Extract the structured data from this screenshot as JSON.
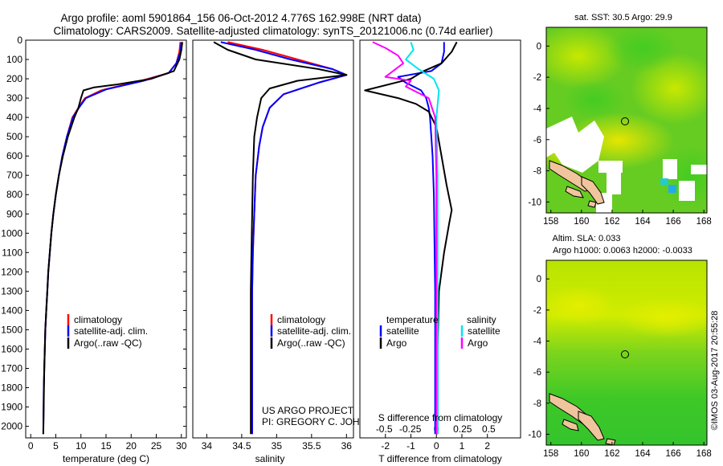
{
  "header": {
    "title_line1": "Argo profile: aoml 5901864_156 06-Oct-2012 4.776S 162.998E (NRT data)",
    "title_line2": "Climatology: CARS2009. Satellite-adjusted climatology: synTS_20121006.nc (0.74d earlier)"
  },
  "colors": {
    "climatology": "#ff0000",
    "satellite": "#0000ff",
    "argo": "#000000",
    "salinity_satellite": "#00e5ee",
    "salinity_argo": "#ff00ff"
  },
  "chart_data": [
    {
      "type": "line",
      "name": "temperature-profile",
      "xlabel": "temperature (deg C)",
      "ylabel": "",
      "xlim": [
        -1,
        31
      ],
      "ylim": [
        2060,
        0
      ],
      "xticks": [
        0,
        5,
        10,
        15,
        20,
        25,
        30
      ],
      "yticks": [
        0,
        100,
        200,
        300,
        400,
        500,
        600,
        700,
        800,
        900,
        1000,
        1100,
        1200,
        1300,
        1400,
        1500,
        1600,
        1700,
        1800,
        1900,
        2000
      ],
      "legend": [
        "climatology",
        "satellite-adj. clim.",
        "Argo(..raw -QC)"
      ],
      "series": [
        {
          "name": "climatology",
          "x": [
            29.8,
            29.6,
            29.0,
            27.5,
            22.0,
            14.0,
            10.8,
            9.5,
            8.3,
            7.2,
            6.3,
            5.6,
            5.0,
            4.5,
            4.1,
            3.8,
            3.5,
            3.3,
            3.1,
            2.9,
            2.8,
            2.6,
            2.5
          ],
          "y": [
            10,
            60,
            120,
            170,
            210,
            260,
            300,
            350,
            400,
            500,
            600,
            700,
            800,
            900,
            1000,
            1100,
            1200,
            1300,
            1400,
            1500,
            1600,
            1800,
            2040
          ]
        },
        {
          "name": "satellite",
          "x": [
            30.0,
            29.8,
            29.0,
            27.5,
            22.5,
            15.0,
            11.0,
            9.6,
            8.4,
            7.2,
            6.3,
            5.6,
            5.0,
            4.5,
            4.1,
            3.8,
            3.5,
            3.3,
            3.1,
            2.9,
            2.8,
            2.6,
            2.5
          ],
          "y": [
            10,
            60,
            120,
            170,
            210,
            255,
            300,
            350,
            400,
            500,
            600,
            700,
            800,
            900,
            1000,
            1100,
            1200,
            1300,
            1400,
            1500,
            1600,
            1800,
            2040
          ]
        },
        {
          "name": "argo",
          "x": [
            30.2,
            30.0,
            29.6,
            28.5,
            24.0,
            17.0,
            12.5,
            10.5,
            10.0,
            9.5,
            8.7,
            7.4,
            6.4,
            5.6,
            5.0,
            4.5,
            4.1,
            3.8,
            3.5,
            3.3,
            3.1,
            2.9,
            2.7,
            2.5
          ],
          "y": [
            10,
            50,
            100,
            160,
            200,
            230,
            245,
            260,
            300,
            350,
            400,
            500,
            600,
            700,
            800,
            900,
            1000,
            1100,
            1200,
            1300,
            1400,
            1500,
            1700,
            2040
          ]
        }
      ]
    },
    {
      "type": "line",
      "name": "salinity-profile",
      "xlabel": "salinity",
      "ylabel": "",
      "xlim": [
        33.8,
        36.1
      ],
      "ylim": [
        2060,
        0
      ],
      "xticks": [
        34,
        34.5,
        35,
        35.5,
        36
      ],
      "legend": [
        "climatology",
        "satellite-adj. clim.",
        "Argo(..raw -QC)"
      ],
      "series": [
        {
          "name": "climatology",
          "x": [
            34.3,
            34.8,
            35.3,
            35.8,
            36.0,
            35.6,
            35.1,
            34.9,
            34.8,
            34.75,
            34.7,
            34.68,
            34.66,
            34.65,
            34.65,
            34.65,
            34.65
          ],
          "y": [
            10,
            50,
            100,
            150,
            180,
            220,
            280,
            350,
            450,
            550,
            700,
            900,
            1100,
            1300,
            1500,
            1800,
            2040
          ]
        },
        {
          "name": "satellite",
          "x": [
            34.2,
            34.7,
            35.2,
            35.8,
            36.0,
            35.6,
            35.1,
            34.9,
            34.8,
            34.75,
            34.7,
            34.68,
            34.66,
            34.65,
            34.65,
            34.65,
            34.65
          ],
          "y": [
            10,
            50,
            100,
            150,
            180,
            220,
            280,
            350,
            450,
            550,
            700,
            900,
            1100,
            1300,
            1500,
            1800,
            2040
          ]
        },
        {
          "name": "argo",
          "x": [
            34.1,
            34.3,
            34.7,
            35.6,
            36.0,
            35.3,
            34.9,
            34.78,
            34.72,
            34.68,
            34.66,
            34.65,
            34.64,
            34.63,
            34.63,
            34.63,
            34.63
          ],
          "y": [
            10,
            50,
            100,
            150,
            180,
            210,
            250,
            300,
            400,
            500,
            700,
            900,
            1100,
            1300,
            1500,
            1800,
            2040
          ]
        }
      ]
    },
    {
      "type": "line",
      "name": "difference-profile",
      "xlabel": "T difference from climatology",
      "xlabel_top": "S difference from climatology",
      "xlim": [
        -3,
        3.3
      ],
      "ylim": [
        2060,
        0
      ],
      "xticks_T": [
        -2,
        -1,
        0,
        1,
        2
      ],
      "xticks_S": [
        "-0.5",
        "-0.25",
        "0",
        "0.25",
        "0.5"
      ],
      "legend_titles": [
        "temperature",
        "salinity"
      ],
      "legend": [
        "satellite",
        "Argo",
        "satellite",
        "Argo"
      ],
      "series": [
        {
          "name": "temperature-satellite",
          "x": [
            0.3,
            0.3,
            0.2,
            -0.2,
            -1.5,
            -1.2,
            -0.6,
            -0.4,
            -0.3,
            -0.25,
            -0.2,
            -0.15,
            -0.1,
            -0.08,
            -0.05,
            -0.05,
            -0.05
          ],
          "y": [
            10,
            60,
            120,
            160,
            190,
            220,
            260,
            300,
            350,
            400,
            500,
            600,
            800,
            1000,
            1300,
            1600,
            2040
          ]
        },
        {
          "name": "temperature-argo",
          "x": [
            0.8,
            0.6,
            0.2,
            -0.5,
            -1.0,
            -2.8,
            -1.5,
            -0.8,
            -0.3,
            0.0,
            0.2,
            0.4,
            0.6,
            0.5,
            0.3,
            0.1,
            0.05,
            0.05
          ],
          "y": [
            10,
            60,
            120,
            160,
            200,
            260,
            300,
            330,
            370,
            450,
            600,
            750,
            880,
            950,
            1100,
            1300,
            1600,
            2040
          ]
        },
        {
          "name": "salinity-satellite",
          "x": [
            -1.0,
            -0.9,
            -1.2,
            -0.7,
            -0.1,
            0.1,
            0.0,
            0.05,
            0.05,
            0.05
          ],
          "y": [
            10,
            50,
            100,
            150,
            200,
            260,
            400,
            700,
            1100,
            2040
          ]
        },
        {
          "name": "salinity-argo",
          "x": [
            -2.5,
            -2.0,
            -1.5,
            -1.3,
            -2.0,
            -1.0,
            -1.2,
            -0.3,
            -0.05,
            0.0,
            0.0
          ],
          "y": [
            10,
            40,
            80,
            120,
            190,
            210,
            240,
            300,
            400,
            700,
            2040
          ]
        }
      ]
    }
  ],
  "annotations": {
    "project_line1": "US ARGO PROJECT",
    "project_line2": "PI: GREGORY C. JOHNSON"
  },
  "maps": {
    "sst": {
      "title": "sat. SST: 30.5 Argo: 29.9",
      "xticks": [
        "158",
        "160",
        "162",
        "164",
        "166",
        "168"
      ],
      "yticks": [
        "0",
        "-2",
        "-4",
        "-6",
        "-8",
        "-10"
      ]
    },
    "sla": {
      "title1": "Altim. SLA: 0.033",
      "title2": "Argo h1000: 0.0063 h2000: -0.0033",
      "xticks": [
        "158",
        "160",
        "162",
        "164",
        "166",
        "168"
      ],
      "yticks": [
        "0",
        "-2",
        "-4",
        "-6",
        "-8",
        "-10"
      ]
    }
  },
  "footer": {
    "copyright": "©IMOS 03-Aug-2017 20:55:28"
  }
}
